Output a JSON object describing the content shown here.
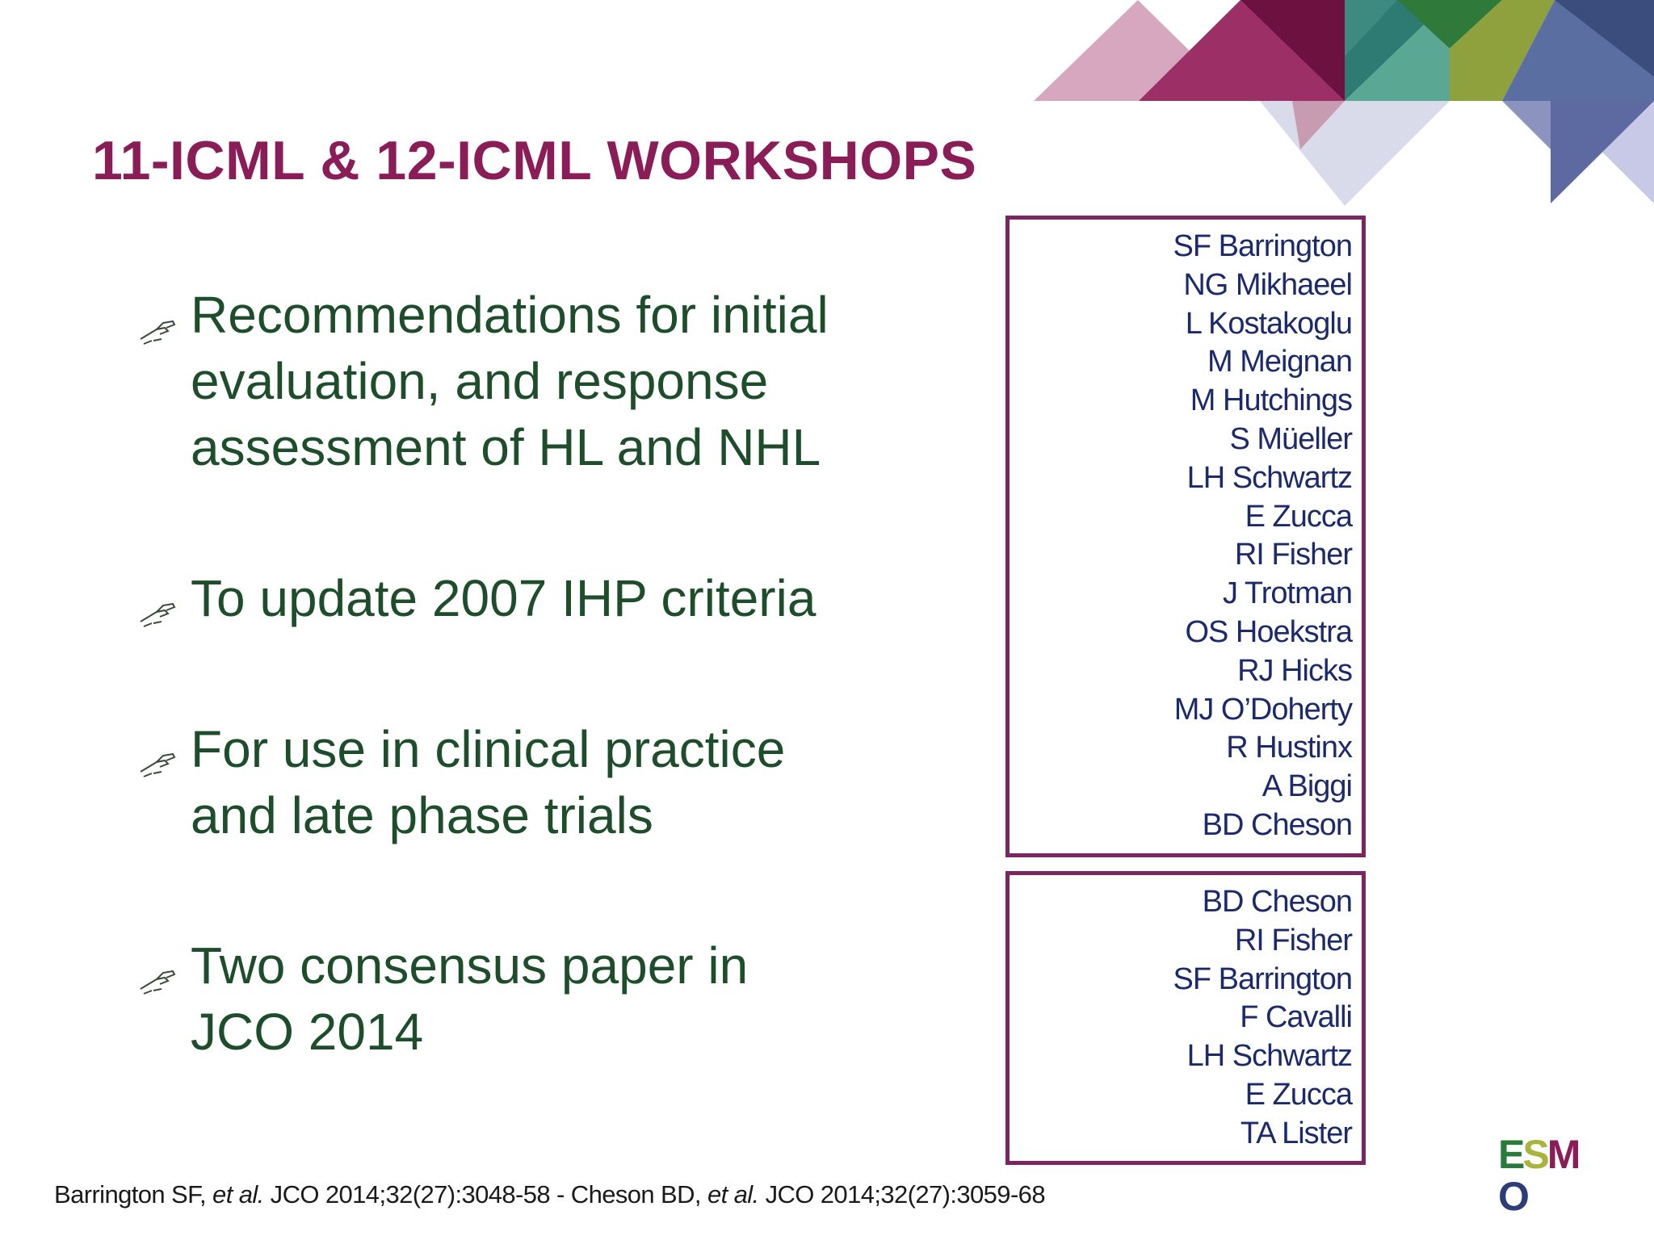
{
  "title": "11-ICML & 12-ICML WORKSHOPS",
  "bullets": [
    {
      "lines": [
        "Recommendations for initial",
        "evaluation, and response",
        "assessment of HL and NHL"
      ]
    },
    {
      "lines": [
        "To update 2007 IHP criteria"
      ]
    },
    {
      "lines": [
        "For use in clinical practice",
        "and late phase trials"
      ]
    },
    {
      "lines": [
        "Two consensus paper in",
        "JCO 2014"
      ]
    }
  ],
  "box_1_names": [
    "SF Barrington",
    "NG Mikhaeel",
    "L Kostakoglu",
    "M Meignan",
    "M Hutchings",
    "S Müeller",
    "LH Schwartz",
    "E Zucca",
    "RI Fisher",
    "J Trotman",
    "OS Hoekstra",
    "RJ Hicks",
    "MJ O’Doherty",
    "R Hustinx",
    "A Biggi",
    "BD Cheson"
  ],
  "box_2_names": [
    "BD Cheson",
    "RI Fisher",
    "SF Barrington",
    "F Cavalli",
    "LH Schwartz",
    "E Zucca",
    "TA Lister"
  ],
  "citation": {
    "part1": "Barrington SF, ",
    "etal1": "et al.",
    "part2": " JCO 2014;32(27):3048-58 - Cheson BD, ",
    "etal2": "et al.",
    "part3": " JCO 2014;32(27):3059-68"
  },
  "logo": {
    "text": "ESMO",
    "colors": [
      "#2a7a3b",
      "#a8b43a",
      "#8a1c58",
      "#2c3d7a"
    ]
  },
  "colors": {
    "title": "#8a1c58",
    "body_text": "#1e4d2b",
    "box_border": "#7a2660",
    "names": "#1c2a6b"
  },
  "icons": {
    "bullet": "pointing-hand-icon"
  }
}
